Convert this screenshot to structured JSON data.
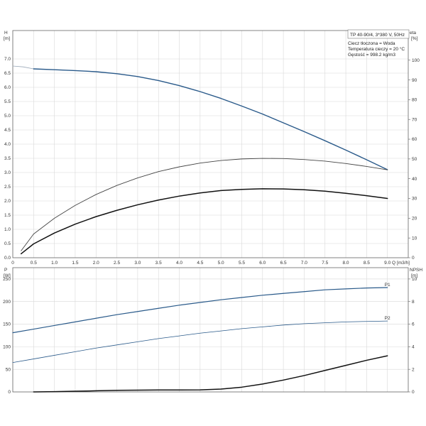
{
  "info_box": {
    "model": "TP 40-90/4, 3*380 V, 50Hz",
    "line1": "Ciecz tłoczona = Woda",
    "line2": "Temperatura cieczy = 20 °C",
    "line3": "Gęstość = 998.2 kg/m3"
  },
  "chart_data": [
    {
      "type": "line",
      "panel": "top",
      "ylabel_left": "H",
      "ylabel_left_unit": "[m]",
      "ylabel_right": "eta",
      "ylabel_right_unit": "[%]",
      "xlabel": "Q [m3/h]",
      "xlim": [
        0,
        9.5
      ],
      "ylim": [
        0,
        8.0
      ],
      "ylim_right": [
        0,
        115
      ],
      "x_ticks": [
        0,
        0.5,
        1.0,
        1.5,
        2.0,
        2.5,
        3.0,
        3.5,
        4.0,
        4.5,
        5.0,
        5.5,
        6.0,
        6.5,
        7.0,
        7.5,
        8.0,
        8.5,
        9.0
      ],
      "x_tick_labels": [
        "0",
        "0.5",
        "1.0",
        "1.5",
        "2.0",
        "2.5",
        "3.0",
        "3.5",
        "4.0",
        "4.5",
        "5.0",
        "5.5",
        "6.0",
        "6.5",
        "7.0",
        "7.5",
        "8.0",
        "8.5",
        "9.0"
      ],
      "y_ticks": [
        0,
        0.5,
        1.0,
        1.5,
        2.0,
        2.5,
        3.0,
        3.5,
        4.0,
        4.5,
        5.0,
        5.5,
        6.0,
        6.5,
        7.0
      ],
      "y_tick_labels": [
        "0.0",
        "0.5",
        "1.0",
        "1.5",
        "2.0",
        "2.5",
        "3.0",
        "3.5",
        "4.0",
        "4.5",
        "5.0",
        "5.5",
        "6.0",
        "6.5",
        "7.0"
      ],
      "y_right_ticks": [
        0,
        10,
        20,
        30,
        40,
        50,
        60,
        70,
        80,
        90,
        100
      ],
      "y_right_tick_labels": [
        "0",
        "10",
        "20",
        "30",
        "40",
        "50",
        "60",
        "70",
        "80",
        "90",
        "100"
      ],
      "grid": true,
      "series": [
        {
          "axis": "left",
          "color": "#9aa8b8",
          "width": 0.8,
          "x": [
            0,
            0.25,
            0.5
          ],
          "y": [
            6.75,
            6.72,
            6.65
          ]
        },
        {
          "axis": "left",
          "color": "#2a5a8a",
          "width": 1.4,
          "x": [
            0.5,
            1.0,
            1.5,
            2.0,
            2.5,
            3.0,
            3.5,
            4.0,
            4.5,
            5.0,
            5.5,
            6.0,
            6.5,
            7.0,
            7.5,
            8.0,
            8.5,
            9.0
          ],
          "y": [
            6.65,
            6.62,
            6.59,
            6.55,
            6.48,
            6.38,
            6.24,
            6.06,
            5.85,
            5.61,
            5.34,
            5.06,
            4.75,
            4.44,
            4.12,
            3.79,
            3.45,
            3.1
          ]
        },
        {
          "axis": "right",
          "color": "#444444",
          "width": 0.9,
          "x": [
            0.2,
            0.5,
            1.0,
            1.5,
            2.0,
            2.5,
            3.0,
            3.5,
            4.0,
            4.5,
            5.0,
            5.5,
            6.0,
            6.5,
            7.0,
            7.5,
            8.0,
            8.5,
            9.0
          ],
          "y": [
            3.5,
            12,
            20,
            26.5,
            32,
            36.6,
            40.4,
            43.6,
            46,
            47.9,
            49.2,
            50,
            50.3,
            50.2,
            49.7,
            48.9,
            47.7,
            46.2,
            44.5
          ]
        },
        {
          "axis": "right",
          "color": "#111111",
          "width": 1.5,
          "x": [
            0.2,
            0.5,
            1.0,
            1.5,
            2.0,
            2.5,
            3.0,
            3.5,
            4.0,
            4.5,
            5.0,
            5.5,
            6.0,
            6.5,
            7.0,
            7.5,
            8.0,
            8.5,
            9.0
          ],
          "y": [
            2.0,
            7.0,
            12.5,
            17,
            20.8,
            24,
            26.8,
            29.2,
            31.2,
            32.8,
            34,
            34.6,
            34.9,
            34.8,
            34.4,
            33.7,
            32.6,
            31.4,
            30.0
          ]
        }
      ]
    },
    {
      "type": "line",
      "panel": "bottom",
      "ylabel_left": "P",
      "ylabel_left_unit": "[W]",
      "ylabel_right": "NPSH",
      "ylabel_right_unit": "[m]",
      "xlim": [
        0,
        9.5
      ],
      "ylim": [
        0,
        275
      ],
      "ylim_right": [
        0,
        11
      ],
      "y_ticks": [
        0,
        50,
        100,
        150,
        200,
        250
      ],
      "y_tick_labels": [
        "0",
        "50",
        "100",
        "150",
        "200",
        "250"
      ],
      "y_right_ticks": [
        0,
        2,
        4,
        6,
        8,
        10
      ],
      "y_right_tick_labels": [
        "0",
        "2",
        "4",
        "6",
        "8",
        "10"
      ],
      "grid": true,
      "series": [
        {
          "name": "P1",
          "axis": "left",
          "color": "#2a5a8a",
          "width": 1.2,
          "x": [
            0,
            0.5,
            1.0,
            1.5,
            2.0,
            2.5,
            3.0,
            3.5,
            4.0,
            4.5,
            5.0,
            5.5,
            6.0,
            6.5,
            7.0,
            7.5,
            8.0,
            8.5,
            9.0
          ],
          "y": [
            131,
            139,
            147,
            155,
            163,
            171,
            178,
            185,
            192,
            198,
            204,
            209,
            214,
            218,
            222,
            226,
            228,
            230,
            231
          ]
        },
        {
          "name": "P2",
          "axis": "left",
          "color": "#2a5a8a",
          "width": 0.8,
          "x": [
            0,
            0.5,
            1.0,
            1.5,
            2.0,
            2.5,
            3.0,
            3.5,
            4.0,
            4.5,
            5.0,
            5.5,
            6.0,
            6.5,
            7.0,
            7.5,
            8.0,
            8.5,
            9.0
          ],
          "y": [
            65,
            73,
            81,
            89,
            97,
            104,
            111,
            118,
            124,
            130,
            135,
            140,
            144,
            148,
            151,
            153,
            155,
            156,
            157
          ]
        },
        {
          "axis": "right",
          "color": "#111111",
          "width": 1.5,
          "x": [
            0.5,
            1.0,
            1.5,
            2.0,
            2.5,
            3.0,
            3.5,
            4.0,
            4.5,
            5.0,
            5.5,
            6.0,
            6.5,
            7.0,
            7.5,
            8.0,
            8.5,
            9.0
          ],
          "y": [
            0,
            0.02,
            0.06,
            0.1,
            0.14,
            0.16,
            0.17,
            0.17,
            0.18,
            0.25,
            0.42,
            0.7,
            1.05,
            1.45,
            1.9,
            2.35,
            2.8,
            3.2
          ]
        }
      ]
    }
  ]
}
